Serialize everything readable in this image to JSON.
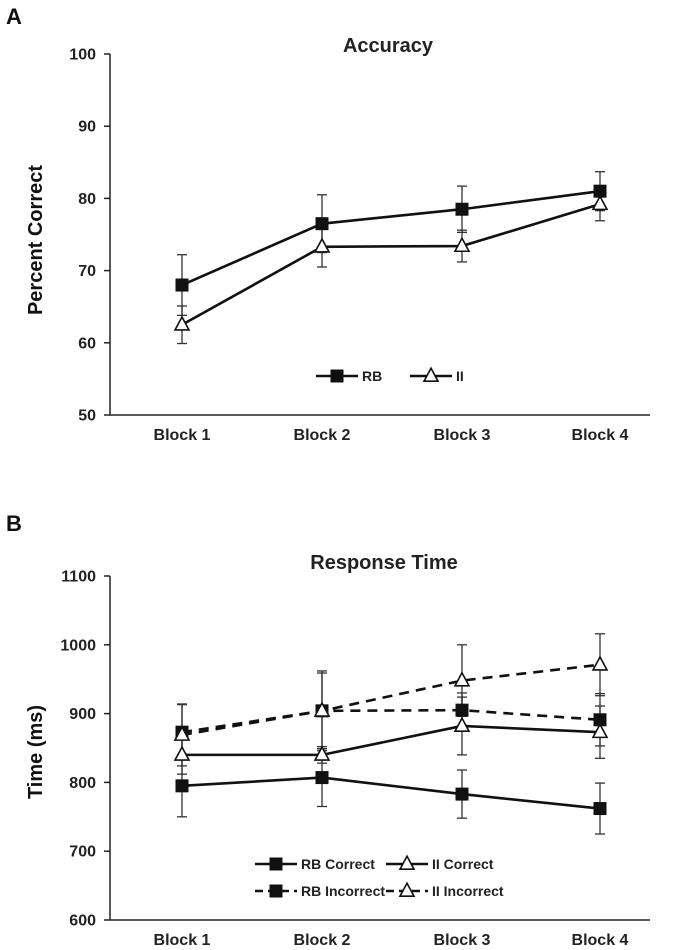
{
  "chart_data": [
    {
      "panel": "A",
      "type": "line",
      "title": "Accuracy",
      "xlabel": "",
      "ylabel": "Percent Correct",
      "categories": [
        "Block 1",
        "Block  2",
        "Block 3",
        "Block 4"
      ],
      "ylim": [
        50,
        100
      ],
      "yticks": [
        50,
        60,
        70,
        80,
        90,
        100
      ],
      "grid": false,
      "legend": "bottom-center",
      "series": [
        {
          "name": "RB",
          "marker": "square",
          "dash": "solid",
          "values": [
            68,
            76.5,
            78.5,
            81
          ],
          "errors": [
            4.2,
            4,
            3.2,
            2.7
          ]
        },
        {
          "name": "II",
          "marker": "triangle-open",
          "dash": "solid",
          "values": [
            62.5,
            73.3,
            73.4,
            79.2
          ],
          "errors": [
            2.6,
            2.8,
            2.2,
            2.3
          ]
        }
      ]
    },
    {
      "panel": "B",
      "type": "line",
      "title": "Response Time",
      "xlabel": "",
      "ylabel": "Time (ms)",
      "categories": [
        "Block 1",
        "Block  2",
        "Block 3",
        "Block 4"
      ],
      "ylim": [
        600,
        1100
      ],
      "yticks": [
        600,
        700,
        800,
        900,
        1000,
        1100
      ],
      "grid": false,
      "legend": "bottom-center",
      "series": [
        {
          "name": "RB Correct",
          "marker": "square",
          "dash": "solid",
          "values": [
            795,
            807,
            783,
            762
          ],
          "errors": [
            45,
            42,
            35,
            37
          ]
        },
        {
          "name": "II Correct",
          "marker": "triangle-open",
          "dash": "solid",
          "values": [
            840,
            840,
            882,
            873
          ],
          "errors": [
            28,
            12,
            42,
            38
          ]
        },
        {
          "name": "RB Incorrect",
          "marker": "square",
          "dash": "dashed",
          "values": [
            873,
            904,
            905,
            891
          ],
          "errors": [
            40,
            58,
            25,
            38
          ]
        },
        {
          "name": "II Incorrect",
          "marker": "triangle-open",
          "dash": "dashed",
          "values": [
            869,
            904,
            948,
            971
          ],
          "errors": [
            45,
            55,
            52,
            45
          ]
        }
      ]
    }
  ]
}
